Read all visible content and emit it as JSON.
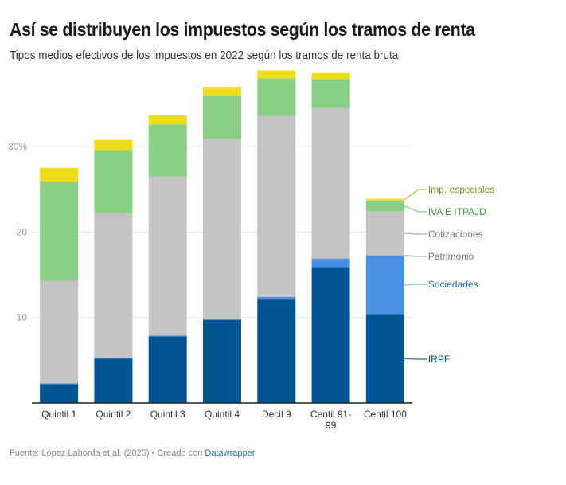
{
  "header": {
    "title": "Así se distribuyen los impuestos según los tramos de renta",
    "subtitle": "Tipos medios efectivos de los impuestos en 2022 según los tramos de renta bruta"
  },
  "footer": {
    "source": "Fuente: López Laborda et al. (2025) • Creado con ",
    "tool_link": "Datawrapper"
  },
  "chart_data": {
    "type": "bar",
    "stacked": true,
    "title": "Así se distribuyen los impuestos según los tramos de renta",
    "subtitle": "Tipos medios efectivos de los impuestos en 2022 según los tramos de renta bruta",
    "xlabel": "",
    "ylabel": "",
    "ylim": [
      0,
      40
    ],
    "yticks": [
      {
        "value": 10,
        "label": "10"
      },
      {
        "value": 20,
        "label": "20"
      },
      {
        "value": 30,
        "label": "30%"
      }
    ],
    "grid": true,
    "legend": "right (inline labels on last bar)",
    "categories": [
      "Quintil 1",
      "Quintil 2",
      "Quintil 3",
      "Quintil 4",
      "Decil 9",
      "Centil 91-99",
      "Centil 100"
    ],
    "series": [
      {
        "name": "IRPF",
        "color": "#00548f",
        "label_color": "#00548f",
        "values": [
          2.2,
          5.2,
          7.8,
          9.7,
          12.1,
          15.9,
          10.4
        ]
      },
      {
        "name": "Sociedades",
        "color": "#4a90e2",
        "label_color": "#1f77c0",
        "values": [
          0.1,
          0.1,
          0.1,
          0.2,
          0.3,
          1.0,
          6.8
        ]
      },
      {
        "name": "Patrimonio",
        "color": "#a0a0a0",
        "label_color": "#777777",
        "values": [
          0,
          0,
          0,
          0,
          0,
          0,
          0.1
        ]
      },
      {
        "name": "Cotizaciones",
        "color": "#c4c4c4",
        "label_color": "#777777",
        "values": [
          12.0,
          16.9,
          18.6,
          21.0,
          21.2,
          17.6,
          5.1
        ]
      },
      {
        "name": "IVA E ITPAJD",
        "color": "#89cf84",
        "label_color": "#3d9a3a",
        "values": [
          11.6,
          7.4,
          6.1,
          5.1,
          4.4,
          3.4,
          1.3
        ]
      },
      {
        "name": "Imp. especiales",
        "color": "#eedc1a",
        "label_color": "#8c8a1c",
        "values": [
          1.6,
          1.2,
          1.1,
          1.0,
          0.9,
          0.7,
          0.2
        ]
      }
    ]
  }
}
